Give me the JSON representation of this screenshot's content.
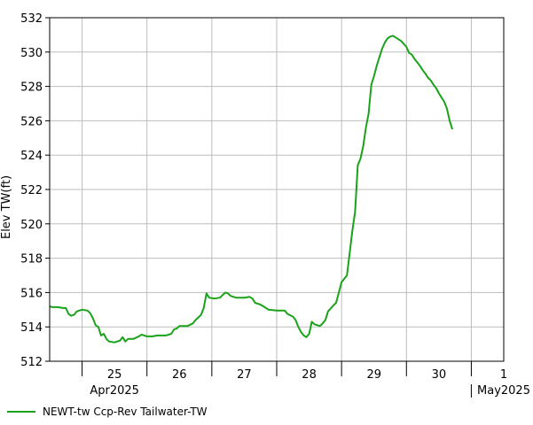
{
  "colors": {
    "series": "#1aa31a",
    "grid": "#bdbdbd",
    "axis": "#000000"
  },
  "chart_data": {
    "type": "line",
    "ylabel": "Elev TW(ft)",
    "ylim": [
      512,
      532
    ],
    "yticks": [
      512,
      514,
      516,
      518,
      520,
      522,
      524,
      526,
      528,
      530,
      532
    ],
    "xlim": [
      "2025-04-24T12:00",
      "2025-05-01T12:00"
    ],
    "x_day_labels": [
      {
        "date": "2025-04-25",
        "label": "25"
      },
      {
        "date": "2025-04-26",
        "label": "26"
      },
      {
        "date": "2025-04-27",
        "label": "27"
      },
      {
        "date": "2025-04-28",
        "label": "28"
      },
      {
        "date": "2025-04-29",
        "label": "29"
      },
      {
        "date": "2025-04-30",
        "label": "30"
      },
      {
        "date": "2025-05-01",
        "label": "1"
      }
    ],
    "x_month_labels": [
      {
        "date": "2025-04-25",
        "label": "Apr2025"
      },
      {
        "date": "2025-05-01",
        "label": "May2025"
      }
    ],
    "grid": true,
    "legend_position": "bottom-left",
    "series": [
      {
        "name": "NEWT-tw Ccp-Rev Tailwater-TW",
        "points": [
          [
            "2025-04-24T12:00",
            515.2
          ],
          [
            "2025-04-24T13:00",
            515.15
          ],
          [
            "2025-04-24T15:00",
            515.15
          ],
          [
            "2025-04-24T17:00",
            515.1
          ],
          [
            "2025-04-24T18:00",
            515.1
          ],
          [
            "2025-04-24T19:00",
            514.75
          ],
          [
            "2025-04-24T20:00",
            514.65
          ],
          [
            "2025-04-24T21:00",
            514.7
          ],
          [
            "2025-04-24T22:00",
            514.9
          ],
          [
            "2025-04-25T00:00",
            515.0
          ],
          [
            "2025-04-25T02:00",
            514.95
          ],
          [
            "2025-04-25T03:00",
            514.8
          ],
          [
            "2025-04-25T04:00",
            514.5
          ],
          [
            "2025-04-25T05:00",
            514.1
          ],
          [
            "2025-04-25T06:00",
            514.0
          ],
          [
            "2025-04-25T07:00",
            513.5
          ],
          [
            "2025-04-25T08:00",
            513.6
          ],
          [
            "2025-04-25T09:00",
            513.3
          ],
          [
            "2025-04-25T10:00",
            513.15
          ],
          [
            "2025-04-25T12:00",
            513.1
          ],
          [
            "2025-04-25T14:00",
            513.2
          ],
          [
            "2025-04-25T15:00",
            513.4
          ],
          [
            "2025-04-25T16:00",
            513.15
          ],
          [
            "2025-04-25T17:00",
            513.3
          ],
          [
            "2025-04-25T19:00",
            513.3
          ],
          [
            "2025-04-25T21:00",
            513.45
          ],
          [
            "2025-04-25T22:00",
            513.55
          ],
          [
            "2025-04-26T00:00",
            513.45
          ],
          [
            "2025-04-26T02:00",
            513.45
          ],
          [
            "2025-04-26T04:00",
            513.5
          ],
          [
            "2025-04-26T07:00",
            513.5
          ],
          [
            "2025-04-26T09:00",
            513.6
          ],
          [
            "2025-04-26T10:00",
            513.85
          ],
          [
            "2025-04-26T11:00",
            513.9
          ],
          [
            "2025-04-26T12:00",
            514.05
          ],
          [
            "2025-04-26T15:00",
            514.05
          ],
          [
            "2025-04-26T17:00",
            514.2
          ],
          [
            "2025-04-26T18:00",
            514.4
          ],
          [
            "2025-04-26T20:00",
            514.7
          ],
          [
            "2025-04-26T21:00",
            515.1
          ],
          [
            "2025-04-26T22:00",
            515.95
          ],
          [
            "2025-04-26T23:00",
            515.7
          ],
          [
            "2025-04-27T01:00",
            515.65
          ],
          [
            "2025-04-27T03:00",
            515.7
          ],
          [
            "2025-04-27T04:00",
            515.85
          ],
          [
            "2025-04-27T05:00",
            516.0
          ],
          [
            "2025-04-27T06:00",
            515.95
          ],
          [
            "2025-04-27T07:00",
            515.8
          ],
          [
            "2025-04-27T09:00",
            515.7
          ],
          [
            "2025-04-27T12:00",
            515.7
          ],
          [
            "2025-04-27T14:00",
            515.75
          ],
          [
            "2025-04-27T15:00",
            515.65
          ],
          [
            "2025-04-27T16:00",
            515.4
          ],
          [
            "2025-04-27T18:00",
            515.3
          ],
          [
            "2025-04-27T19:00",
            515.2
          ],
          [
            "2025-04-27T21:00",
            515.0
          ],
          [
            "2025-04-28T00:00",
            514.95
          ],
          [
            "2025-04-28T03:00",
            514.95
          ],
          [
            "2025-04-28T04:00",
            514.75
          ],
          [
            "2025-04-28T06:00",
            514.6
          ],
          [
            "2025-04-28T07:00",
            514.4
          ],
          [
            "2025-04-28T08:00",
            514.0
          ],
          [
            "2025-04-28T09:00",
            513.7
          ],
          [
            "2025-04-28T10:00",
            513.5
          ],
          [
            "2025-04-28T11:00",
            513.4
          ],
          [
            "2025-04-28T12:00",
            513.6
          ],
          [
            "2025-04-28T13:00",
            514.3
          ],
          [
            "2025-04-28T14:00",
            514.15
          ],
          [
            "2025-04-28T16:00",
            514.05
          ],
          [
            "2025-04-28T17:00",
            514.2
          ],
          [
            "2025-04-28T18:00",
            514.4
          ],
          [
            "2025-04-28T19:00",
            514.9
          ],
          [
            "2025-04-28T21:00",
            515.25
          ],
          [
            "2025-04-28T22:00",
            515.4
          ],
          [
            "2025-04-29T00:00",
            516.6
          ],
          [
            "2025-04-29T02:00",
            517.0
          ],
          [
            "2025-04-29T03:00",
            518.3
          ],
          [
            "2025-04-29T04:00",
            519.6
          ],
          [
            "2025-04-29T05:00",
            520.7
          ],
          [
            "2025-04-29T06:00",
            523.4
          ],
          [
            "2025-04-29T07:00",
            523.8
          ],
          [
            "2025-04-29T08:00",
            524.5
          ],
          [
            "2025-04-29T09:00",
            525.6
          ],
          [
            "2025-04-29T10:00",
            526.4
          ],
          [
            "2025-04-29T11:00",
            528.1
          ],
          [
            "2025-04-29T12:00",
            528.6
          ],
          [
            "2025-04-29T13:00",
            529.2
          ],
          [
            "2025-04-29T14:00",
            529.7
          ],
          [
            "2025-04-29T15:00",
            530.2
          ],
          [
            "2025-04-29T16:00",
            530.55
          ],
          [
            "2025-04-29T17:00",
            530.8
          ],
          [
            "2025-04-29T18:00",
            530.9
          ],
          [
            "2025-04-29T19:00",
            530.95
          ],
          [
            "2025-04-29T20:00",
            530.85
          ],
          [
            "2025-04-29T22:00",
            530.65
          ],
          [
            "2025-04-30T00:00",
            530.3
          ],
          [
            "2025-04-30T01:00",
            529.95
          ],
          [
            "2025-04-30T02:00",
            529.85
          ],
          [
            "2025-04-30T03:00",
            529.6
          ],
          [
            "2025-04-30T04:00",
            529.4
          ],
          [
            "2025-04-30T05:00",
            529.2
          ],
          [
            "2025-04-30T06:00",
            528.95
          ],
          [
            "2025-04-30T07:00",
            528.75
          ],
          [
            "2025-04-30T08:00",
            528.5
          ],
          [
            "2025-04-30T09:00",
            528.35
          ],
          [
            "2025-04-30T10:00",
            528.1
          ],
          [
            "2025-04-30T11:00",
            527.9
          ],
          [
            "2025-04-30T12:00",
            527.6
          ],
          [
            "2025-04-30T13:00",
            527.35
          ],
          [
            "2025-04-30T14:00",
            527.1
          ],
          [
            "2025-04-30T15:00",
            526.7
          ],
          [
            "2025-04-30T16:00",
            526.0
          ],
          [
            "2025-04-30T17:00",
            525.5
          ]
        ]
      }
    ]
  }
}
